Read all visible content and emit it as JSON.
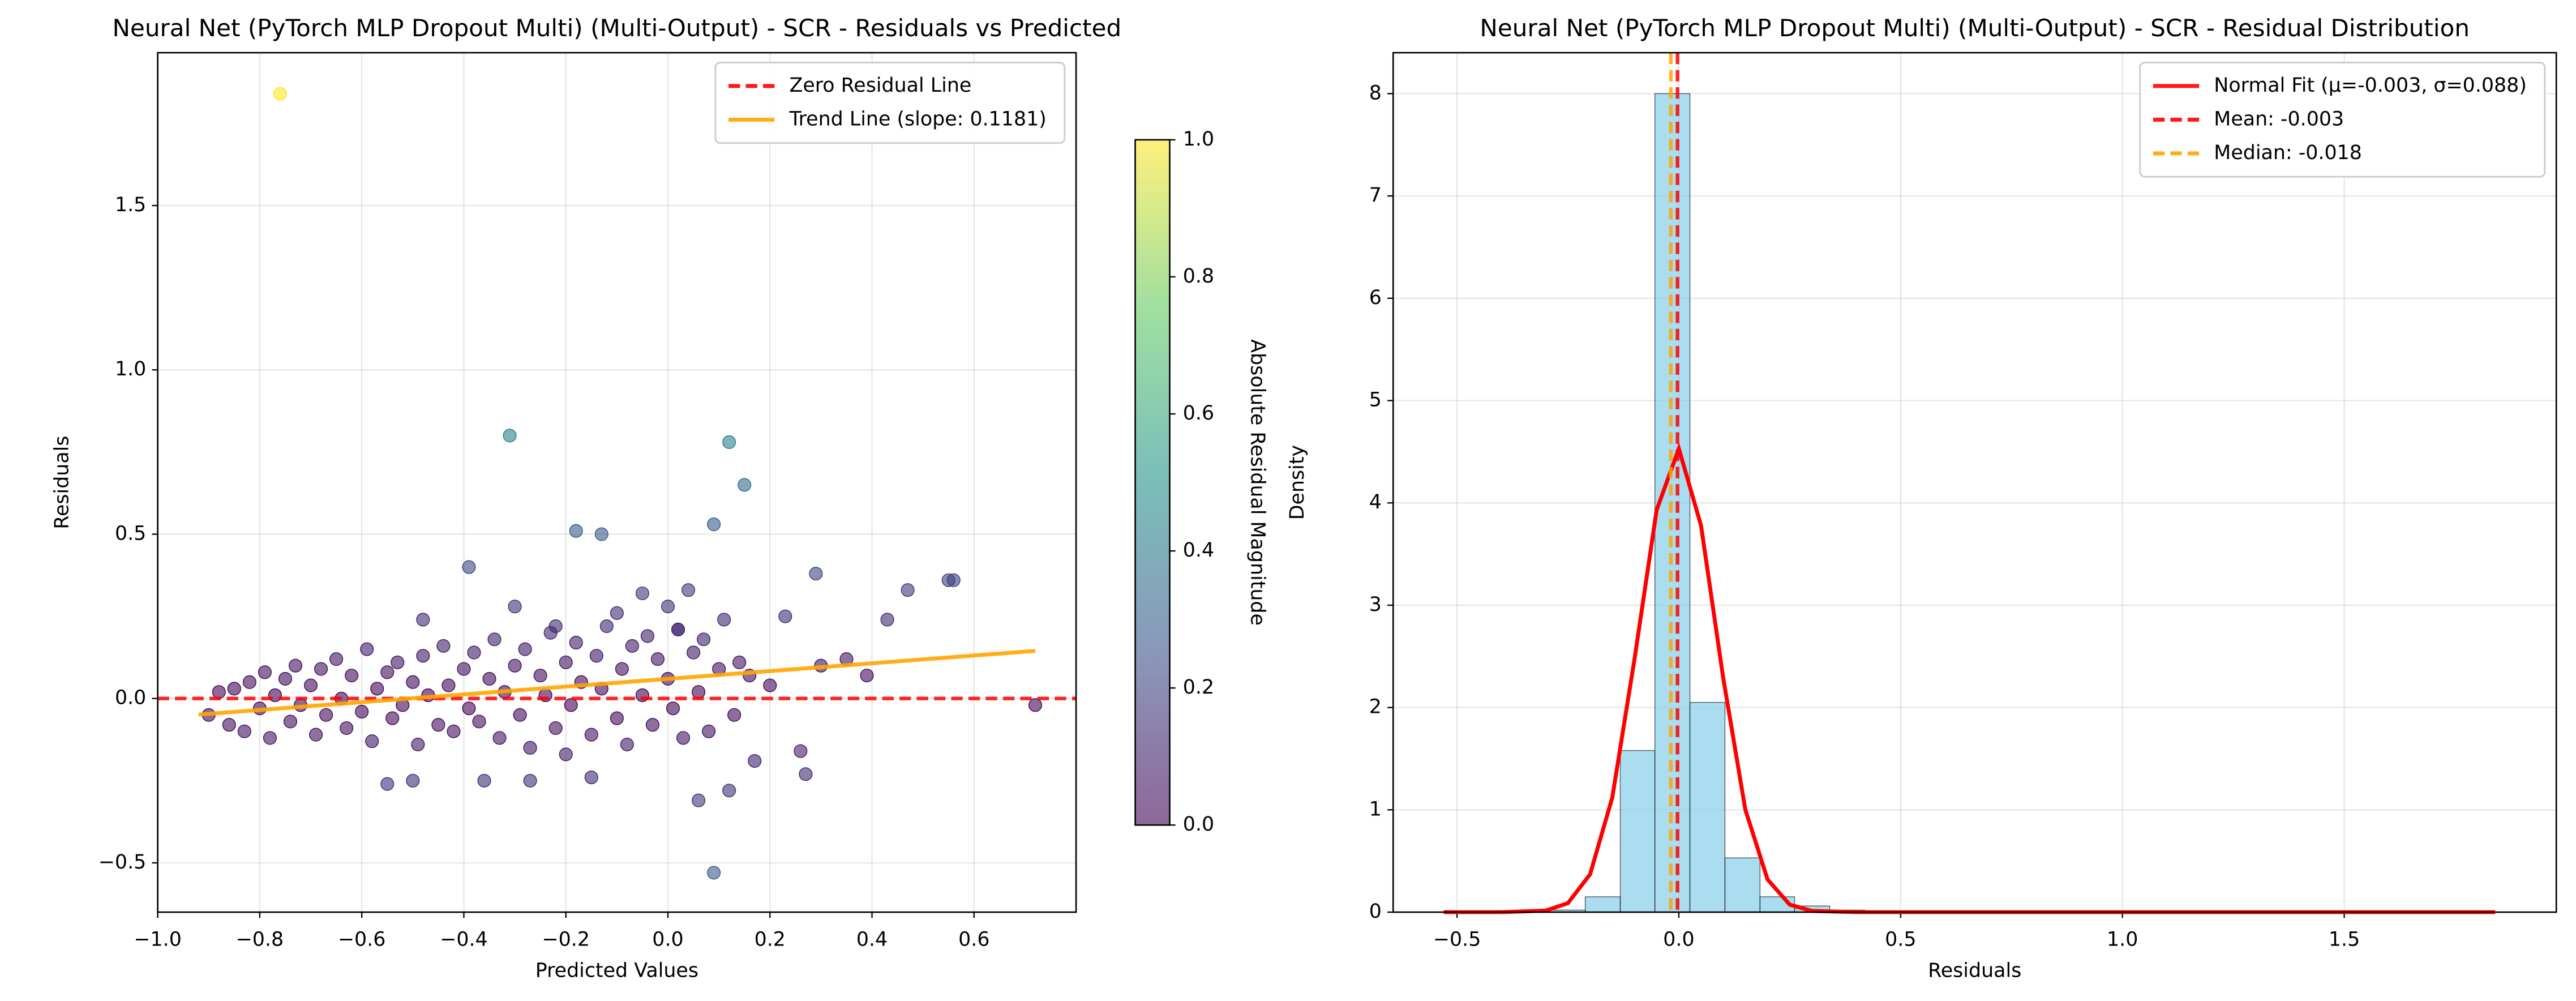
{
  "chart_data": [
    {
      "type": "scatter",
      "title": "Neural Net (PyTorch MLP Dropout Multi) (Multi-Output) - SCR - Residuals vs Predicted",
      "xlabel": "Predicted Values",
      "ylabel": "Residuals",
      "x": [
        -0.76,
        -0.31,
        0.12,
        0.15,
        0.09,
        -0.18,
        -0.13,
        -0.39,
        0.09,
        0.06,
        0.72,
        0.55,
        0.56,
        0.29,
        0.47,
        0.43,
        0.35,
        0.39,
        0.27,
        0.26,
        0.17,
        0.12,
        -0.55,
        -0.5,
        -0.36,
        -0.27,
        -0.15,
        -0.2,
        0.02,
        0.04,
        -0.22,
        -0.05,
        0.0,
        -0.3,
        -0.48,
        -0.1,
        0.23,
        0.3,
        0.2,
        -0.9,
        -0.88,
        -0.86,
        -0.85,
        -0.83,
        -0.82,
        -0.8,
        -0.79,
        -0.78,
        -0.77,
        -0.75,
        -0.74,
        -0.73,
        -0.72,
        -0.7,
        -0.69,
        -0.68,
        -0.67,
        -0.65,
        -0.64,
        -0.63,
        -0.62,
        -0.6,
        -0.59,
        -0.58,
        -0.57,
        -0.55,
        -0.54,
        -0.53,
        -0.52,
        -0.5,
        -0.49,
        -0.48,
        -0.47,
        -0.45,
        -0.44,
        -0.43,
        -0.42,
        -0.4,
        -0.39,
        -0.38,
        -0.37,
        -0.35,
        -0.34,
        -0.33,
        -0.32,
        -0.3,
        -0.29,
        -0.28,
        -0.27,
        -0.25,
        -0.24,
        -0.23,
        -0.22,
        -0.2,
        -0.19,
        -0.18,
        -0.17,
        -0.15,
        -0.14,
        -0.13,
        -0.12,
        -0.1,
        -0.09,
        -0.08,
        -0.07,
        -0.05,
        -0.04,
        -0.03,
        -0.02,
        0.0,
        0.01,
        0.02,
        0.03,
        0.05,
        0.06,
        0.07,
        0.08,
        0.1,
        0.11,
        0.13,
        0.14,
        0.16
      ],
      "values": [
        1.84,
        0.8,
        0.78,
        0.65,
        0.53,
        0.51,
        0.5,
        0.4,
        -0.53,
        -0.31,
        -0.02,
        0.36,
        0.36,
        0.38,
        0.33,
        0.24,
        0.12,
        0.07,
        -0.23,
        -0.16,
        -0.19,
        -0.28,
        -0.26,
        -0.25,
        -0.25,
        -0.25,
        -0.24,
        -0.17,
        0.21,
        0.33,
        0.22,
        0.32,
        0.28,
        0.28,
        0.24,
        0.26,
        0.25,
        0.1,
        0.04,
        -0.05,
        0.02,
        -0.08,
        0.03,
        -0.1,
        0.05,
        -0.03,
        0.08,
        -0.12,
        0.01,
        0.06,
        -0.07,
        0.1,
        -0.02,
        0.04,
        -0.11,
        0.09,
        -0.05,
        0.12,
        0.0,
        -0.09,
        0.07,
        -0.04,
        0.15,
        -0.13,
        0.03,
        0.08,
        -0.06,
        0.11,
        -0.02,
        0.05,
        -0.14,
        0.13,
        0.01,
        -0.08,
        0.16,
        0.04,
        -0.1,
        0.09,
        -0.03,
        0.14,
        -0.07,
        0.06,
        0.18,
        -0.12,
        0.02,
        0.1,
        -0.05,
        0.15,
        -0.15,
        0.07,
        0.01,
        0.2,
        -0.09,
        0.11,
        -0.02,
        0.17,
        0.05,
        -0.11,
        0.13,
        0.03,
        0.22,
        -0.06,
        0.09,
        -0.14,
        0.16,
        0.01,
        0.19,
        -0.08,
        0.12,
        0.06,
        -0.03,
        0.21,
        -0.12,
        0.14,
        0.02,
        0.18,
        -0.1,
        0.09,
        0.24,
        -0.05,
        0.11,
        0.07
      ],
      "colormap": "viridis",
      "xlim": [
        -1.0,
        0.8
      ],
      "xticks": [
        {
          "value": -1.0,
          "label": "−1.0"
        },
        {
          "value": -0.8,
          "label": "−0.8"
        },
        {
          "value": -0.6,
          "label": "−0.6"
        },
        {
          "value": -0.4,
          "label": "−0.4"
        },
        {
          "value": -0.2,
          "label": "−0.2"
        },
        {
          "value": 0,
          "label": "0.0"
        },
        {
          "value": 0.2,
          "label": "0.2"
        },
        {
          "value": 0.4,
          "label": "0.4"
        },
        {
          "value": 0.6,
          "label": "0.6"
        }
      ],
      "ylim": [
        -0.65,
        1.965
      ],
      "yticks": [
        {
          "value": -0.5,
          "label": "−0.5"
        },
        {
          "value": 0,
          "label": "0.0"
        },
        {
          "value": 0.5,
          "label": "0.5"
        },
        {
          "value": 1.0,
          "label": "1.0"
        },
        {
          "value": 1.5,
          "label": "1.5"
        }
      ],
      "grid": true,
      "legend": "upper right",
      "reference_lines": [
        {
          "name": "Zero Residual Line",
          "value": 0,
          "color": "#ff0000",
          "dashed": true,
          "orientation": "horizontal"
        }
      ],
      "trend_line": {
        "name": "Trend Line (slope: 0.1181)",
        "color": "#ffa500",
        "x": [
          -0.92,
          0.72
        ],
        "values": [
          -0.049,
          0.145
        ]
      },
      "colorbar": {
        "label": "Absolute Residual Magnitude",
        "lim": [
          0,
          1
        ],
        "ticks": [
          {
            "value": 0,
            "label": "0.0"
          },
          {
            "value": 0.2,
            "label": "0.2"
          },
          {
            "value": 0.4,
            "label": "0.4"
          },
          {
            "value": 0.6,
            "label": "0.6"
          },
          {
            "value": 0.8,
            "label": "0.8"
          },
          {
            "value": 1.0,
            "label": "1.0"
          }
        ]
      }
    },
    {
      "type": "histogram",
      "title": "Neural Net (PyTorch MLP Dropout Multi) (Multi-Output) - SCR - Residual Distribution",
      "xlabel": "Residuals",
      "ylabel": "Density",
      "bins": [
        -0.526,
        -0.447,
        -0.369,
        -0.29,
        -0.211,
        -0.132,
        -0.054,
        0.025,
        0.104,
        0.183,
        0.261,
        0.34,
        0.419,
        0.498,
        0.576,
        0.655,
        0.734,
        0.813,
        0.892,
        0.97,
        1.049,
        1.128,
        1.207,
        1.285,
        1.364,
        1.443,
        1.522,
        1.601,
        1.679,
        1.758,
        1.837
      ],
      "values": [
        0.01,
        0,
        0,
        0.02,
        0.15,
        1.58,
        8.0,
        2.05,
        0.53,
        0.15,
        0.06,
        0.02,
        0,
        0.01,
        0,
        0.01,
        0.01,
        0,
        0,
        0,
        0,
        0,
        0,
        0,
        0,
        0,
        0,
        0,
        0,
        0.01
      ],
      "color": "#87ceeb",
      "xlim": [
        -0.644,
        1.978
      ],
      "xticks": [
        {
          "value": -0.5,
          "label": "−0.5"
        },
        {
          "value": 0,
          "label": "0.0"
        },
        {
          "value": 0.5,
          "label": "0.5"
        },
        {
          "value": 1.0,
          "label": "1.0"
        },
        {
          "value": 1.5,
          "label": "1.5"
        }
      ],
      "ylim": [
        0,
        8.4
      ],
      "yticks": [
        0,
        1,
        2,
        3,
        4,
        5,
        6,
        7,
        8
      ],
      "grid": true,
      "legend": "upper right",
      "normal_fit": {
        "name": "Normal Fit (μ=-0.003, σ=0.088)",
        "color": "#ff0000",
        "x": [
          -0.53,
          -0.4,
          -0.3,
          -0.25,
          -0.2,
          -0.15,
          -0.1,
          -0.05,
          0,
          0.05,
          0.1,
          0.15,
          0.2,
          0.25,
          0.3,
          0.4,
          0.6,
          1.0,
          1.84
        ],
        "values": [
          0,
          0,
          0.015,
          0.088,
          0.37,
          1.12,
          2.47,
          3.93,
          4.53,
          3.78,
          2.29,
          1.0,
          0.32,
          0.073,
          0.012,
          0,
          0,
          0,
          0
        ]
      },
      "reference_lines": [
        {
          "name": "Mean: -0.003",
          "value": -0.003,
          "color": "#ff0000",
          "dashed": true,
          "orientation": "vertical"
        },
        {
          "name": "Median: -0.018",
          "value": -0.018,
          "color": "#ffa500",
          "dashed": true,
          "orientation": "vertical"
        }
      ]
    }
  ]
}
